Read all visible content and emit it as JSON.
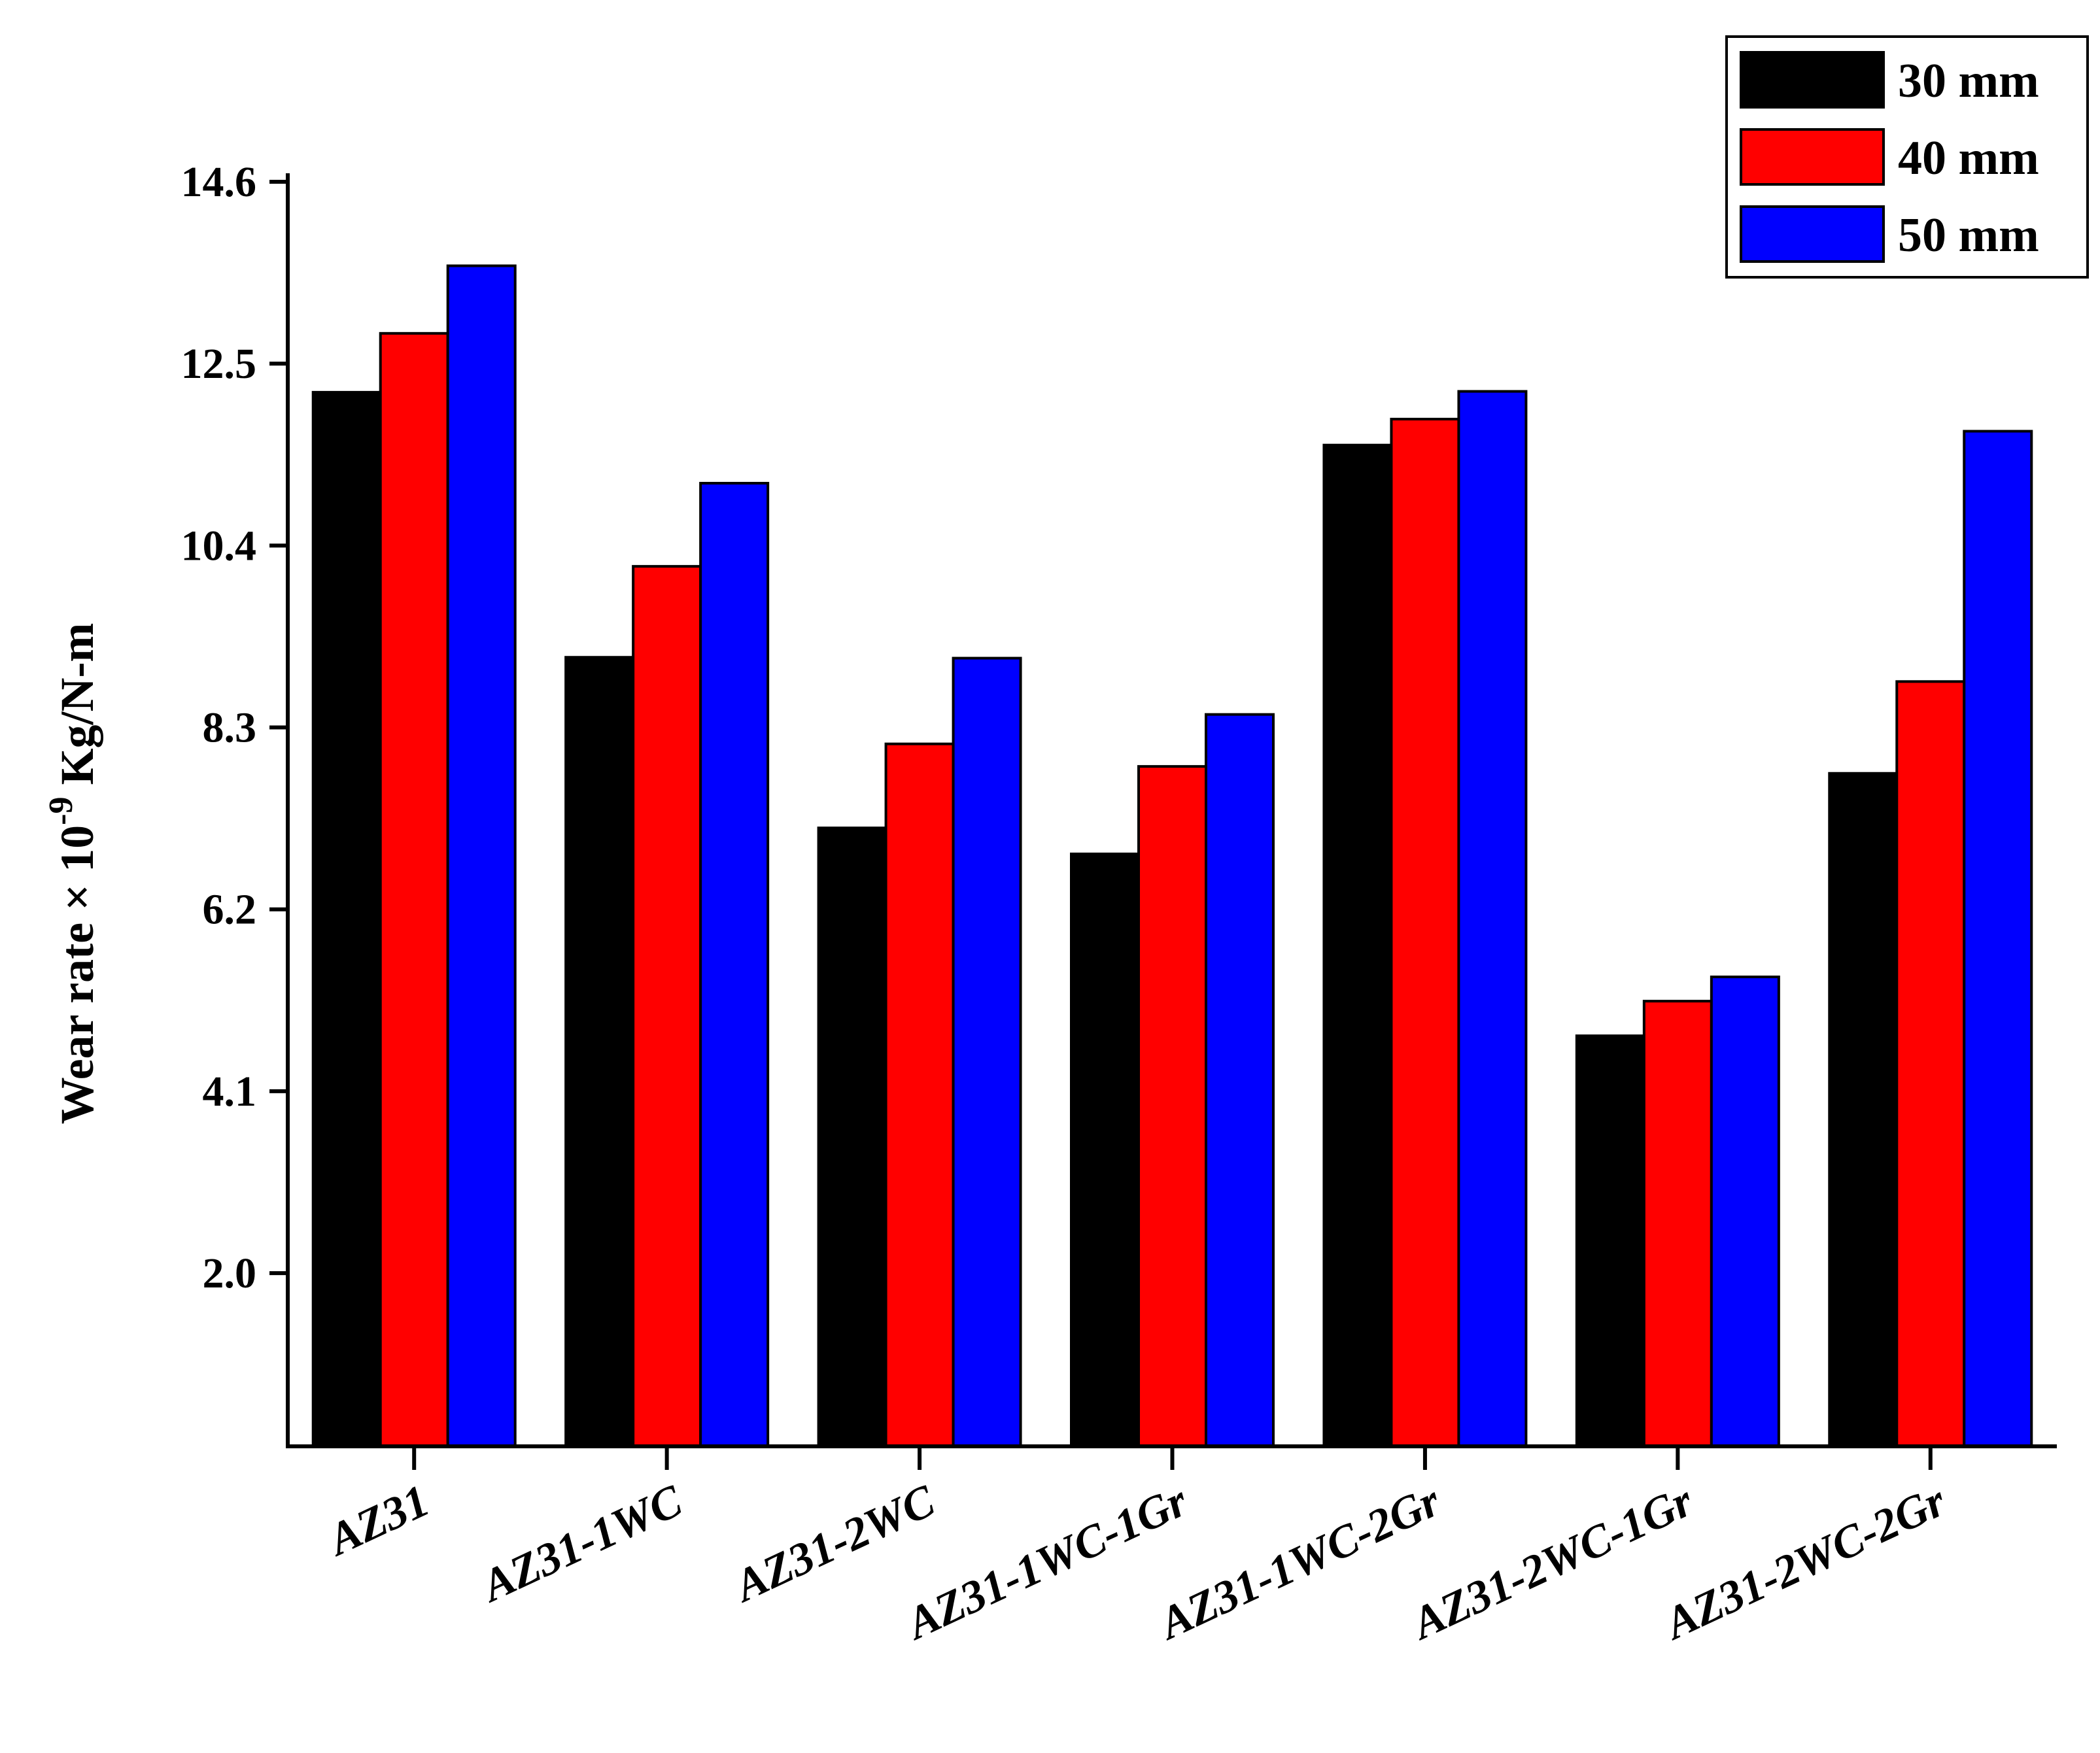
{
  "chart_data": {
    "type": "bar",
    "categories": [
      "AZ31",
      "AZ31-1WC",
      "AZ31-2WC",
      "AZ31-1WC-1Gr",
      "AZ31-1WC-2Gr",
      "AZ31-2WC-1Gr",
      "AZ31-2WC-2Gr"
    ],
    "series": [
      {
        "name": "30 mm",
        "color": "#000000",
        "values": [
          12.17,
          9.11,
          7.14,
          6.84,
          11.56,
          4.74,
          7.77
        ]
      },
      {
        "name": "40 mm",
        "color": "#ff0000",
        "values": [
          12.85,
          10.16,
          8.11,
          7.85,
          11.86,
          5.14,
          8.83
        ]
      },
      {
        "name": "50 mm",
        "color": "#0000ff",
        "values": [
          13.63,
          11.12,
          9.1,
          8.45,
          12.18,
          5.42,
          11.72
        ]
      }
    ],
    "ylabel": "Wear rate × 10",
    "ylabel_superscript": "-9",
    "ylabel_unit": " Kg/N-m",
    "yticks": [
      2.0,
      4.1,
      6.2,
      8.3,
      10.4,
      12.5,
      14.6
    ],
    "ytick_labels": [
      "2.0",
      "4.1",
      "6.2",
      "8.3",
      "10.4",
      "12.5",
      "14.6"
    ],
    "ylim": [
      0,
      14.6
    ],
    "grid": false,
    "legend_position": "top-right"
  }
}
